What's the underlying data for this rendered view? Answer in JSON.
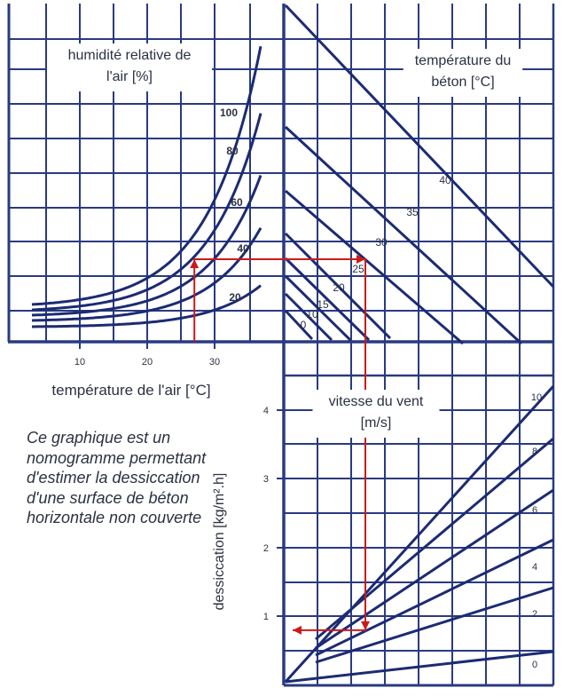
{
  "chart_data": {
    "type": "nomogram",
    "colors": {
      "grid": "#2a3a80",
      "curve": "#1c2b73",
      "path": "#cc1a1a",
      "text": "#2b3142"
    },
    "quadrant_air": {
      "title": "humidité relative de l'air [%]",
      "title_lines": [
        "humidité relative de",
        "l'air [%]"
      ],
      "xlabel": "température de l'air [°C]",
      "x_ticks": [
        "10",
        "20",
        "30"
      ],
      "series": [
        {
          "name": "100",
          "shape": "exponential"
        },
        {
          "name": "80",
          "shape": "exponential"
        },
        {
          "name": "60",
          "shape": "exponential"
        },
        {
          "name": "40",
          "shape": "exponential"
        },
        {
          "name": "20",
          "shape": "exponential"
        }
      ]
    },
    "quadrant_concrete": {
      "title": "température du béton [°C]",
      "title_lines": [
        "température du",
        "béton [°C]"
      ],
      "series": [
        {
          "name": "0"
        },
        {
          "name": "10"
        },
        {
          "name": "15"
        },
        {
          "name": "20"
        },
        {
          "name": "25"
        },
        {
          "name": "30"
        },
        {
          "name": "35"
        },
        {
          "name": "40"
        }
      ]
    },
    "quadrant_wind": {
      "title": "vitesse du vent [m/s]",
      "title_lines": [
        "vitesse du vent",
        "[m/s]"
      ],
      "ylabel": "dessiccation [kg/m².h]",
      "y_ticks": [
        "1",
        "2",
        "3",
        "4"
      ],
      "ylim": [
        0,
        4.4
      ],
      "series": [
        {
          "name": "0"
        },
        {
          "name": "2"
        },
        {
          "name": "4"
        },
        {
          "name": "6"
        },
        {
          "name": "8"
        },
        {
          "name": "10"
        }
      ]
    },
    "example": {
      "air_temperature": 27,
      "relative_humidity": 40,
      "concrete_temperature": 25,
      "result_dessiccation": 0.8
    }
  },
  "caption": "Ce graphique est un nomogramme permettant d'estimer la dessiccation d'une surface de béton horizontale non couverte"
}
